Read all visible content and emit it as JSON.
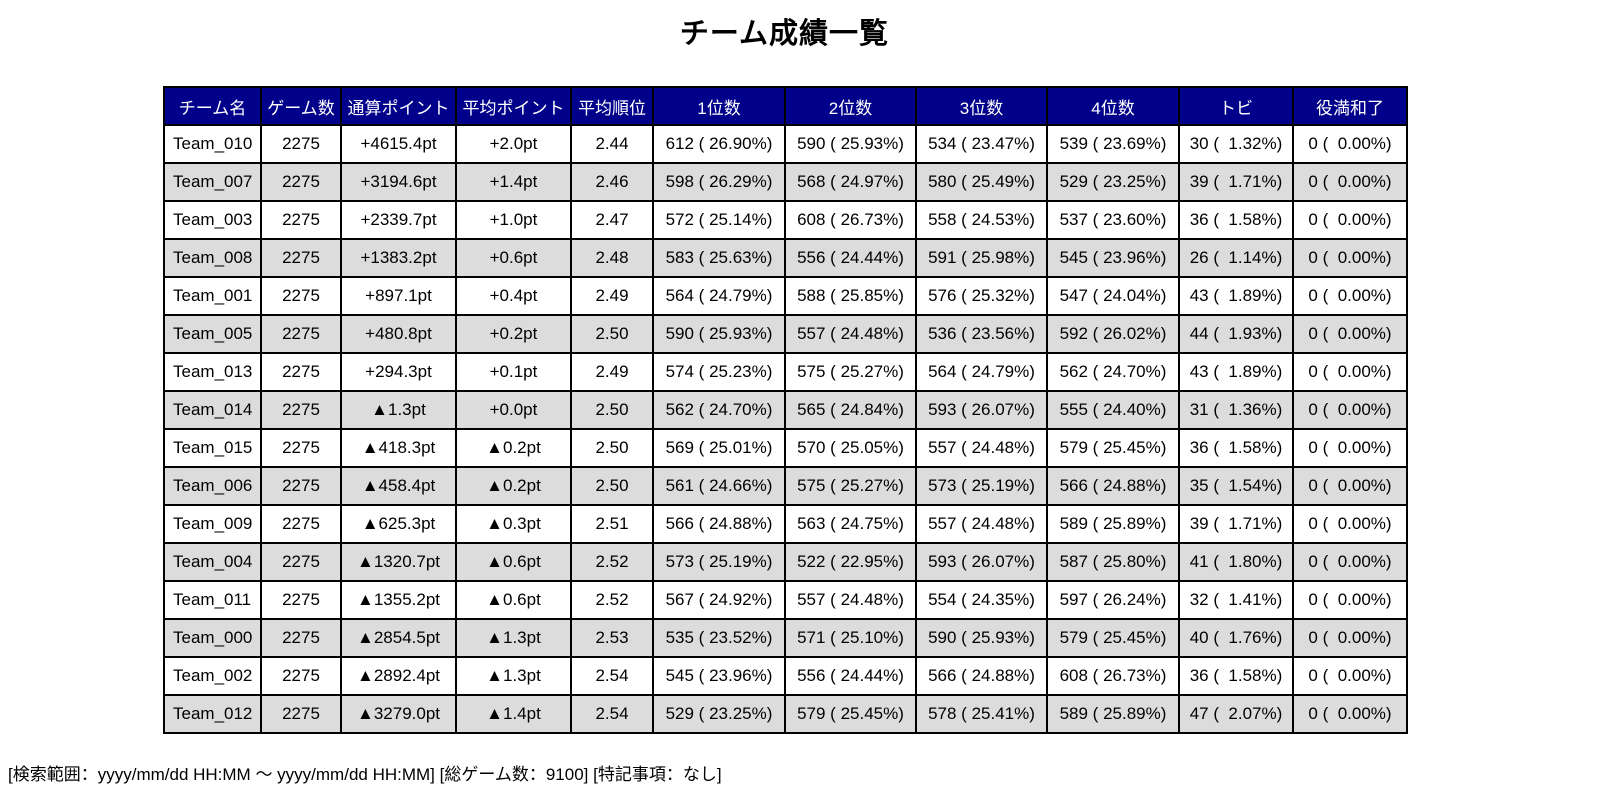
{
  "title": "チーム成績一覧",
  "footer": "[検索範囲：yyyy/mm/dd HH:MM ～ yyyy/mm/dd HH:MM] [総ゲーム数：9100] [特記事項：なし]",
  "colors": {
    "header_bg": "#00008B",
    "header_text": "#FFFFFF",
    "row_stripe": "#DCDCDC",
    "border": "#000000",
    "background": "#FFFFFF"
  },
  "chart_data": {
    "type": "table",
    "title": "チーム成績一覧",
    "columns": [
      "チーム名",
      "ゲーム数",
      "通算ポイント",
      "平均ポイント",
      "平均順位",
      "1位数",
      "2位数",
      "3位数",
      "4位数",
      "トビ",
      "役満和了"
    ],
    "rows": [
      [
        "Team_010",
        "2275",
        "+4615.4pt",
        "+2.0pt",
        "2.44",
        "612 ( 26.90%)",
        "590 ( 25.93%)",
        "534 ( 23.47%)",
        "539 ( 23.69%)",
        "30 (  1.32%)",
        "0 (  0.00%)"
      ],
      [
        "Team_007",
        "2275",
        "+3194.6pt",
        "+1.4pt",
        "2.46",
        "598 ( 26.29%)",
        "568 ( 24.97%)",
        "580 ( 25.49%)",
        "529 ( 23.25%)",
        "39 (  1.71%)",
        "0 (  0.00%)"
      ],
      [
        "Team_003",
        "2275",
        "+2339.7pt",
        "+1.0pt",
        "2.47",
        "572 ( 25.14%)",
        "608 ( 26.73%)",
        "558 ( 24.53%)",
        "537 ( 23.60%)",
        "36 (  1.58%)",
        "0 (  0.00%)"
      ],
      [
        "Team_008",
        "2275",
        "+1383.2pt",
        "+0.6pt",
        "2.48",
        "583 ( 25.63%)",
        "556 ( 24.44%)",
        "591 ( 25.98%)",
        "545 ( 23.96%)",
        "26 (  1.14%)",
        "0 (  0.00%)"
      ],
      [
        "Team_001",
        "2275",
        "+897.1pt",
        "+0.4pt",
        "2.49",
        "564 ( 24.79%)",
        "588 ( 25.85%)",
        "576 ( 25.32%)",
        "547 ( 24.04%)",
        "43 (  1.89%)",
        "0 (  0.00%)"
      ],
      [
        "Team_005",
        "2275",
        "+480.8pt",
        "+0.2pt",
        "2.50",
        "590 ( 25.93%)",
        "557 ( 24.48%)",
        "536 ( 23.56%)",
        "592 ( 26.02%)",
        "44 (  1.93%)",
        "0 (  0.00%)"
      ],
      [
        "Team_013",
        "2275",
        "+294.3pt",
        "+0.1pt",
        "2.49",
        "574 ( 25.23%)",
        "575 ( 25.27%)",
        "564 ( 24.79%)",
        "562 ( 24.70%)",
        "43 (  1.89%)",
        "0 (  0.00%)"
      ],
      [
        "Team_014",
        "2275",
        "▲1.3pt",
        "+0.0pt",
        "2.50",
        "562 ( 24.70%)",
        "565 ( 24.84%)",
        "593 ( 26.07%)",
        "555 ( 24.40%)",
        "31 (  1.36%)",
        "0 (  0.00%)"
      ],
      [
        "Team_015",
        "2275",
        "▲418.3pt",
        "▲0.2pt",
        "2.50",
        "569 ( 25.01%)",
        "570 ( 25.05%)",
        "557 ( 24.48%)",
        "579 ( 25.45%)",
        "36 (  1.58%)",
        "0 (  0.00%)"
      ],
      [
        "Team_006",
        "2275",
        "▲458.4pt",
        "▲0.2pt",
        "2.50",
        "561 ( 24.66%)",
        "575 ( 25.27%)",
        "573 ( 25.19%)",
        "566 ( 24.88%)",
        "35 (  1.54%)",
        "0 (  0.00%)"
      ],
      [
        "Team_009",
        "2275",
        "▲625.3pt",
        "▲0.3pt",
        "2.51",
        "566 ( 24.88%)",
        "563 ( 24.75%)",
        "557 ( 24.48%)",
        "589 ( 25.89%)",
        "39 (  1.71%)",
        "0 (  0.00%)"
      ],
      [
        "Team_004",
        "2275",
        "▲1320.7pt",
        "▲0.6pt",
        "2.52",
        "573 ( 25.19%)",
        "522 ( 22.95%)",
        "593 ( 26.07%)",
        "587 ( 25.80%)",
        "41 (  1.80%)",
        "0 (  0.00%)"
      ],
      [
        "Team_011",
        "2275",
        "▲1355.2pt",
        "▲0.6pt",
        "2.52",
        "567 ( 24.92%)",
        "557 ( 24.48%)",
        "554 ( 24.35%)",
        "597 ( 26.24%)",
        "32 (  1.41%)",
        "0 (  0.00%)"
      ],
      [
        "Team_000",
        "2275",
        "▲2854.5pt",
        "▲1.3pt",
        "2.53",
        "535 ( 23.52%)",
        "571 ( 25.10%)",
        "590 ( 25.93%)",
        "579 ( 25.45%)",
        "40 (  1.76%)",
        "0 (  0.00%)"
      ],
      [
        "Team_002",
        "2275",
        "▲2892.4pt",
        "▲1.3pt",
        "2.54",
        "545 ( 23.96%)",
        "556 ( 24.44%)",
        "566 ( 24.88%)",
        "608 ( 26.73%)",
        "36 (  1.58%)",
        "0 (  0.00%)"
      ],
      [
        "Team_012",
        "2275",
        "▲3279.0pt",
        "▲1.4pt",
        "2.54",
        "529 ( 23.25%)",
        "579 ( 25.45%)",
        "578 ( 25.41%)",
        "589 ( 25.89%)",
        "47 (  2.07%)",
        "0 (  0.00%)"
      ]
    ],
    "footer": "[検索範囲：yyyy/mm/dd HH:MM ～ yyyy/mm/dd HH:MM] [総ゲーム数：9100] [特記事項：なし]"
  }
}
